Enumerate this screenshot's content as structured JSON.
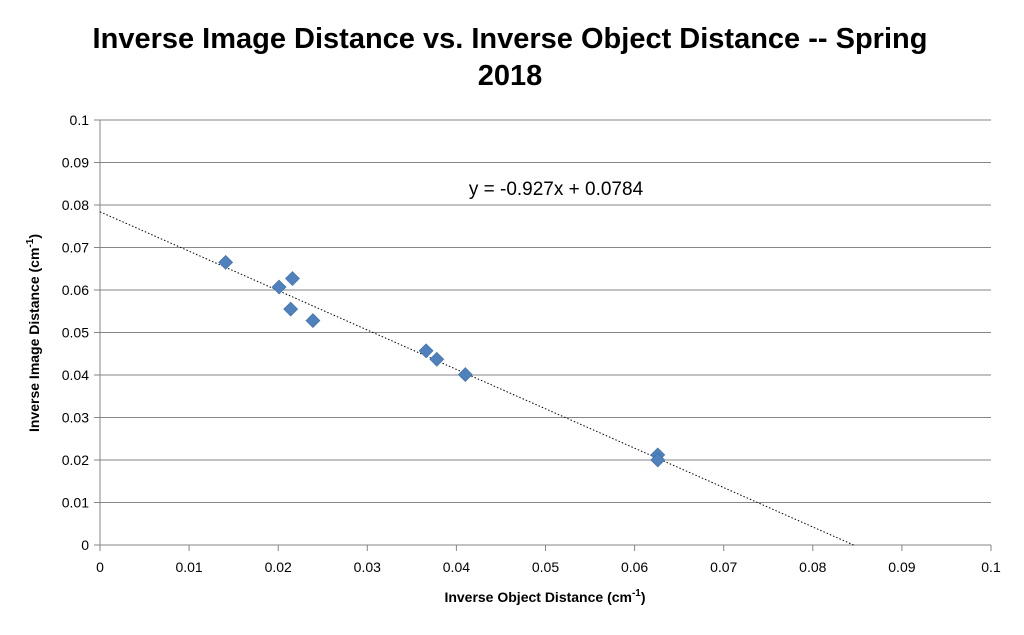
{
  "chart_data": {
    "type": "scatter",
    "title_line1": "Inverse Image Distance vs. Inverse Object Distance -- Spring",
    "title_line2": "2018",
    "xlabel": "Inverse Object Distance (cm",
    "xlabel_sup": "-1",
    "xlabel_close": ")",
    "ylabel": "Inverse Image Distance (cm",
    "ylabel_sup": "-1",
    "ylabel_close": ")",
    "xlim": [
      0,
      0.1
    ],
    "ylim": [
      0,
      0.1
    ],
    "x_ticks": [
      "0",
      "0.01",
      "0.02",
      "0.03",
      "0.04",
      "0.05",
      "0.06",
      "0.07",
      "0.08",
      "0.09",
      "0.1"
    ],
    "y_ticks": [
      "0",
      "0.01",
      "0.02",
      "0.03",
      "0.04",
      "0.05",
      "0.06",
      "0.07",
      "0.08",
      "0.09",
      "0.1"
    ],
    "grid": "horizontal",
    "marker_color": "#4F81BD",
    "points": [
      {
        "x": 0.0141,
        "y": 0.0665
      },
      {
        "x": 0.0201,
        "y": 0.0607
      },
      {
        "x": 0.0216,
        "y": 0.0627
      },
      {
        "x": 0.0214,
        "y": 0.0555
      },
      {
        "x": 0.0239,
        "y": 0.0528
      },
      {
        "x": 0.0366,
        "y": 0.0457
      },
      {
        "x": 0.0378,
        "y": 0.0437
      },
      {
        "x": 0.041,
        "y": 0.0401
      },
      {
        "x": 0.0626,
        "y": 0.0212
      },
      {
        "x": 0.0626,
        "y": 0.02
      }
    ],
    "trendline": {
      "type": "linear",
      "slope": -0.927,
      "intercept": 0.0784,
      "equation": "y = -0.927x + 0.0784",
      "style": "dotted"
    }
  }
}
